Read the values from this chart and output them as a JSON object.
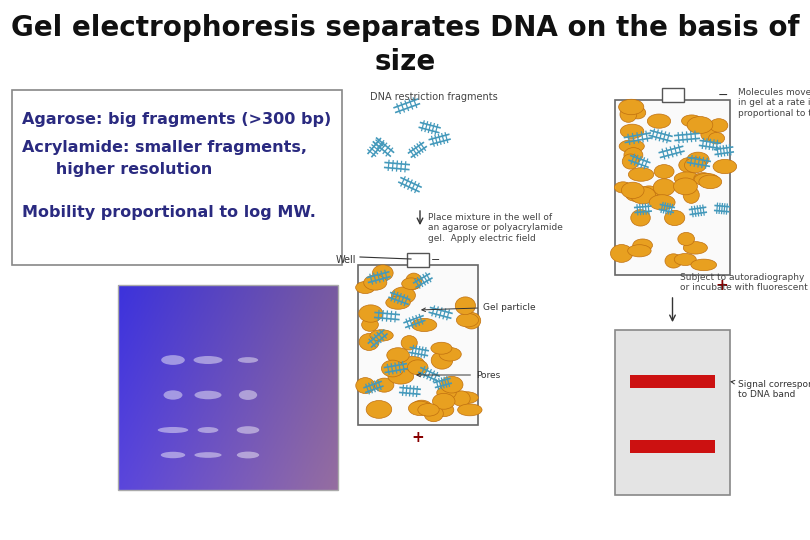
{
  "title_line1": "Gel electrophoresis separates DNA on the basis of",
  "title_line2": "size",
  "title_fontsize": 20,
  "title_fontweight": "bold",
  "title_color": "#111111",
  "bg_color": "#ffffff",
  "text_box_color": "#2a2a80",
  "text_box_border_color": "#888888",
  "text_line1": "Agarose: big fragments (>300 bp)",
  "text_line2": "Acrylamide: smaller fragments,",
  "text_line3": "      higher resolution",
  "text_line5": "Mobility proportional to log MW.",
  "text_fontsize": 11.5,
  "orange_color": "#e8a020",
  "orange_edge": "#c07010",
  "dna_color": "#4499bb",
  "red_band_color": "#cc1111",
  "gel_bg": "#f0f0f0",
  "result_bg": "#e4e4e4"
}
